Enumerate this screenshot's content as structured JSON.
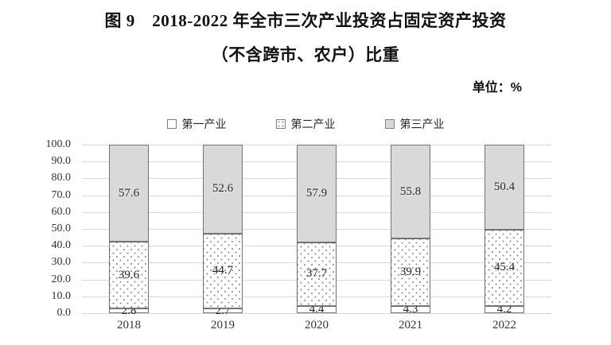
{
  "title": {
    "line1": "图 9　2018-2022 年全市三次产业投资占固定资产投资",
    "line2": "（不含跨市、农户）比重"
  },
  "unit_label": "单位：%",
  "legend": [
    {
      "label": "第一产业",
      "swatch": "white"
    },
    {
      "label": "第二产业",
      "swatch": "dotted"
    },
    {
      "label": "第三产业",
      "swatch": "gray"
    }
  ],
  "chart_data": {
    "type": "bar",
    "stacked": true,
    "title": "图 9　2018-2022 年全市三次产业投资占固定资产投资（不含跨市、农户）比重",
    "xlabel": "",
    "ylabel": "单位：%",
    "categories": [
      "2018",
      "2019",
      "2020",
      "2021",
      "2022"
    ],
    "series": [
      {
        "name": "第一产业",
        "fill": "white",
        "values": [
          2.8,
          2.7,
          4.4,
          4.3,
          4.2
        ]
      },
      {
        "name": "第二产业",
        "fill": "dotted",
        "values": [
          39.6,
          44.7,
          37.7,
          39.9,
          45.4
        ]
      },
      {
        "name": "第三产业",
        "fill": "gray",
        "values": [
          57.6,
          52.6,
          57.9,
          55.8,
          50.4
        ]
      }
    ],
    "ylim": [
      0,
      100
    ],
    "ytick_step": 10,
    "yticks": [
      "100.0",
      "90.0",
      "80.0",
      "70.0",
      "60.0",
      "50.0",
      "40.0",
      "30.0",
      "20.0",
      "10.0",
      "0.0"
    ],
    "grid": true,
    "legend_position": "top",
    "colors": {
      "gray_fill": "#d9d9d9",
      "bar_border": "#737373",
      "grid": "#d9d9d9",
      "text": "#262626"
    }
  }
}
